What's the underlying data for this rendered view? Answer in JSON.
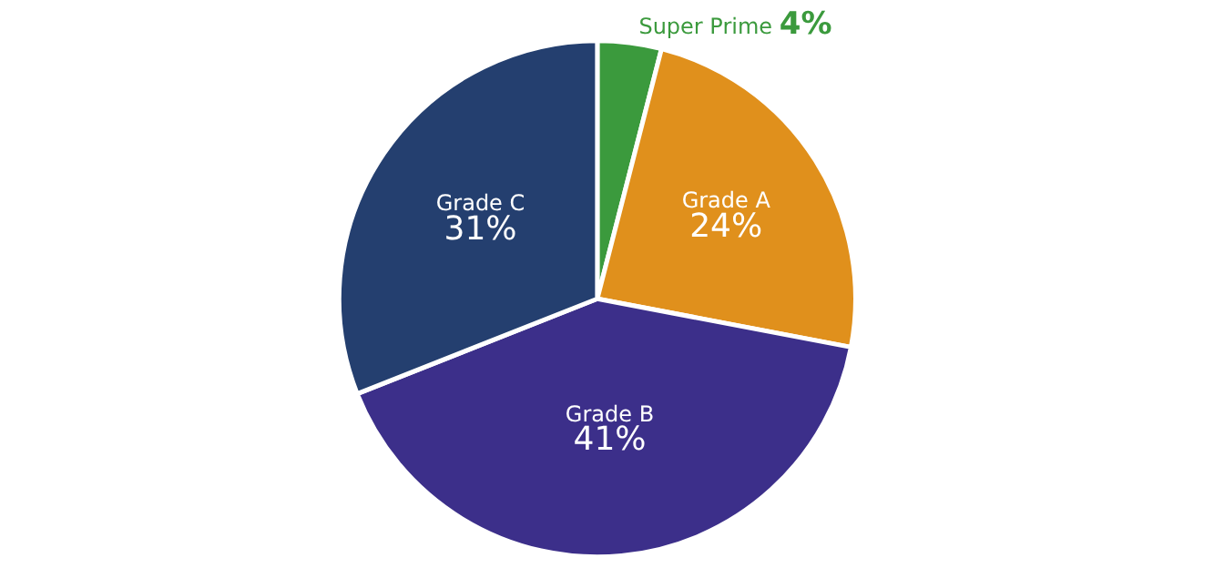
{
  "chart_data": {
    "type": "pie",
    "categories": [
      "Super Prime",
      "Grade A",
      "Grade B",
      "Grade C"
    ],
    "values": [
      4,
      24,
      41,
      31
    ],
    "colors": [
      "#3b9a3d",
      "#e0901c",
      "#3c2f8a",
      "#243f6f"
    ],
    "value_labels": [
      "4%",
      "24%",
      "41%",
      "31%"
    ],
    "legend": false
  }
}
